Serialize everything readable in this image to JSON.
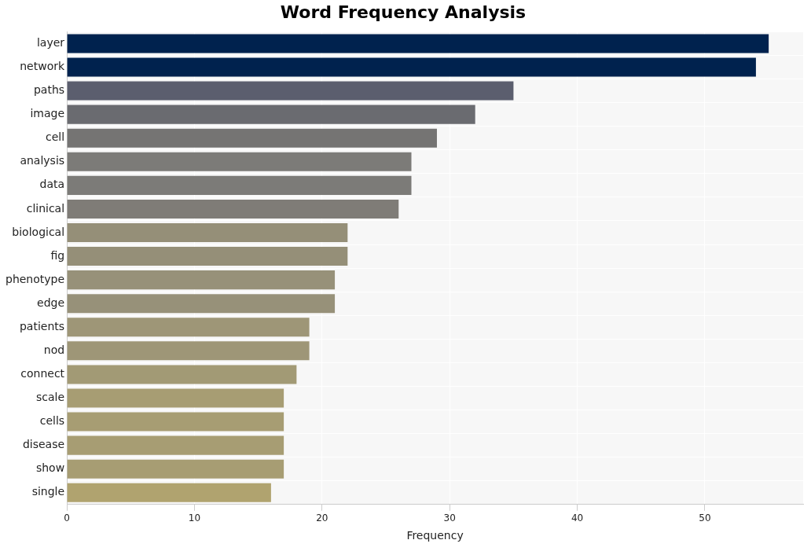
{
  "chart_data": {
    "type": "bar",
    "orientation": "horizontal",
    "title": "Word Frequency Analysis",
    "x_label": "Frequency",
    "categories": [
      "layer",
      "network",
      "paths",
      "image",
      "cell",
      "analysis",
      "data",
      "clinical",
      "biological",
      "fig",
      "phenotype",
      "edge",
      "patients",
      "nod",
      "connect",
      "scale",
      "cells",
      "disease",
      "show",
      "single"
    ],
    "values": [
      55,
      54,
      35,
      32,
      29,
      27,
      27,
      26,
      22,
      22,
      21,
      21,
      19,
      19,
      18,
      17,
      17,
      17,
      17,
      16
    ],
    "colors": [
      "#00224e",
      "#00224e",
      "#5b5e6e",
      "#6a6b70",
      "#757473",
      "#7c7b78",
      "#7c7b78",
      "#7f7c77",
      "#958f78",
      "#958f78",
      "#979179",
      "#979179",
      "#9e9677",
      "#9e9677",
      "#a29a75",
      "#a79d73",
      "#a79d73",
      "#a79d73",
      "#a79d73",
      "#b0a36f"
    ],
    "xlim": [
      0,
      57.7
    ],
    "xticks": [
      0,
      10,
      20,
      30,
      40,
      50
    ],
    "grid": true
  }
}
